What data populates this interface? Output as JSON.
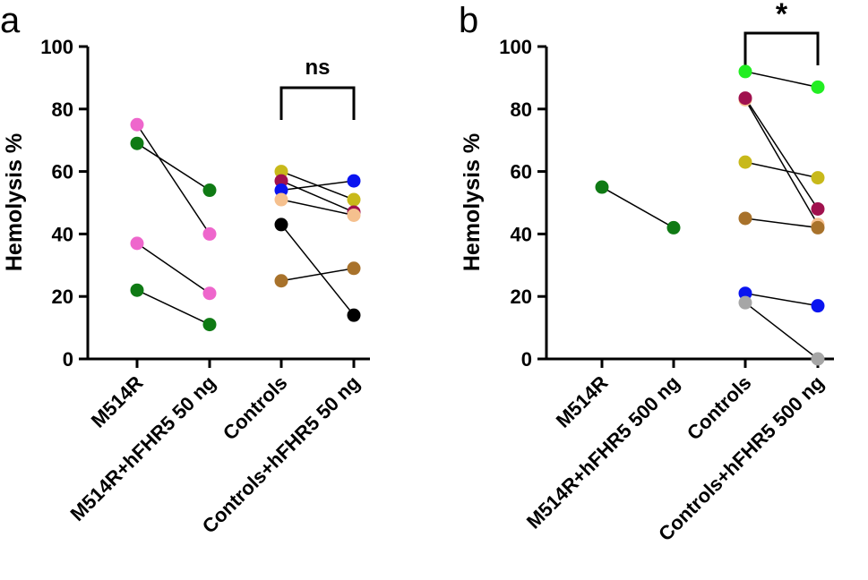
{
  "chart_data": [
    {
      "type": "scatter",
      "panel_label": "a",
      "title": "",
      "xlabel": "",
      "ylabel": "Hemolysis %",
      "ylim": [
        0,
        100
      ],
      "yticks": [
        0,
        20,
        40,
        60,
        80,
        100
      ],
      "categories": [
        "M514R",
        "M514R+hFHR5 50 ng",
        "Controls",
        "Controls+hFHR5 50 ng"
      ],
      "series": [
        {
          "name": "M514R pink 1",
          "color": "#ee66cc",
          "x": [
            0,
            1
          ],
          "values": [
            75,
            40
          ]
        },
        {
          "name": "M514R green 1",
          "color": "#0f7a14",
          "x": [
            0,
            1
          ],
          "values": [
            69,
            54
          ]
        },
        {
          "name": "M514R pink 2",
          "color": "#ee66cc",
          "x": [
            0,
            1
          ],
          "values": [
            37,
            21
          ]
        },
        {
          "name": "M514R green 2",
          "color": "#0f7a14",
          "x": [
            0,
            1
          ],
          "values": [
            22,
            11
          ]
        },
        {
          "name": "Control yellow",
          "color": "#c8b91a",
          "x": [
            2,
            3
          ],
          "values": [
            60,
            51
          ]
        },
        {
          "name": "Control maroon",
          "color": "#a0114e",
          "x": [
            2,
            3
          ],
          "values": [
            57,
            47
          ]
        },
        {
          "name": "Control blue",
          "color": "#0a14f0",
          "x": [
            2,
            3
          ],
          "values": [
            54,
            57
          ]
        },
        {
          "name": "Control peach",
          "color": "#f5c08e",
          "x": [
            2,
            3
          ],
          "values": [
            51,
            46
          ]
        },
        {
          "name": "Control black",
          "color": "#000000",
          "x": [
            2,
            3
          ],
          "values": [
            43,
            14
          ]
        },
        {
          "name": "Control brown",
          "color": "#a8722b",
          "x": [
            2,
            3
          ],
          "values": [
            25,
            29
          ]
        }
      ],
      "significance": {
        "from": 2,
        "to": 3,
        "label": "ns"
      }
    },
    {
      "type": "scatter",
      "panel_label": "b",
      "title": "",
      "xlabel": "",
      "ylabel": "Hemolysis %",
      "ylim": [
        0,
        100
      ],
      "yticks": [
        0,
        20,
        40,
        60,
        80,
        100
      ],
      "categories": [
        "M514R",
        "M514R+hFHR5 500 ng",
        "Controls",
        "Controls+hFHR5 500 ng"
      ],
      "series": [
        {
          "name": "M514R green",
          "color": "#0f7a14",
          "x": [
            0,
            1
          ],
          "values": [
            55,
            42
          ]
        },
        {
          "name": "Control bright green",
          "color": "#22ee22",
          "x": [
            2,
            3
          ],
          "values": [
            92,
            87
          ]
        },
        {
          "name": "Control peach",
          "color": "#f5c08e",
          "x": [
            2,
            3
          ],
          "values": [
            83,
            43
          ]
        },
        {
          "name": "Control maroon",
          "color": "#a0114e",
          "x": [
            2,
            3
          ],
          "values": [
            83.5,
            48
          ]
        },
        {
          "name": "Control yellow",
          "color": "#c8b91a",
          "x": [
            2,
            3
          ],
          "values": [
            63,
            58
          ]
        },
        {
          "name": "Control brown",
          "color": "#a8722b",
          "x": [
            2,
            3
          ],
          "values": [
            45,
            42
          ]
        },
        {
          "name": "Control blue",
          "color": "#0a14f0",
          "x": [
            2,
            3
          ],
          "values": [
            21,
            17
          ]
        },
        {
          "name": "Control grey",
          "color": "#a6a6a6",
          "x": [
            2,
            3
          ],
          "values": [
            18,
            0
          ]
        }
      ],
      "significance": {
        "from": 2,
        "to": 3,
        "label": "*"
      }
    }
  ]
}
